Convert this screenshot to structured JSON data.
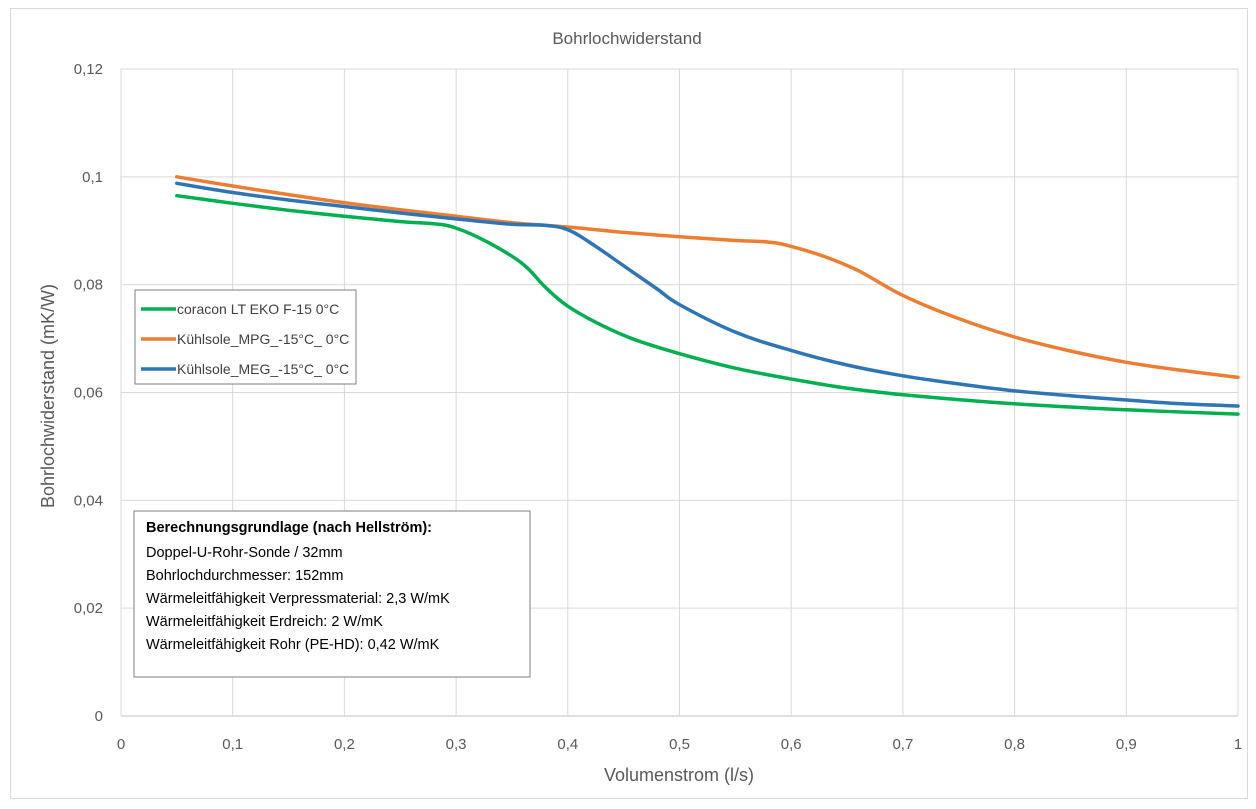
{
  "chart_data": {
    "type": "line",
    "title": "Bohrlochwiderstand",
    "xlabel": "Volumenstrom (l/s)",
    "ylabel": "Bohrlochwiderstand (mK/W)",
    "xlim": [
      0,
      1
    ],
    "ylim": [
      0,
      0.12
    ],
    "x_ticks": [
      "0",
      "0,1",
      "0,2",
      "0,3",
      "0,4",
      "0,5",
      "0,6",
      "0,7",
      "0,8",
      "0,9",
      "1"
    ],
    "y_ticks": [
      "0",
      "0,02",
      "0,04",
      "0,06",
      "0,08",
      "0,1",
      "0,12"
    ],
    "grid": "vertical and horizontal",
    "legend_position": "left",
    "series": [
      {
        "name": "coracon LT EKO F-15 0°C",
        "color": "#00b050",
        "points": [
          [
            0.05,
            0.0965
          ],
          [
            0.1,
            0.0951
          ],
          [
            0.15,
            0.0938
          ],
          [
            0.2,
            0.0927
          ],
          [
            0.25,
            0.0917
          ],
          [
            0.28,
            0.0913
          ],
          [
            0.3,
            0.0905
          ],
          [
            0.33,
            0.0877
          ],
          [
            0.36,
            0.0838
          ],
          [
            0.38,
            0.0795
          ],
          [
            0.4,
            0.076
          ],
          [
            0.43,
            0.0725
          ],
          [
            0.46,
            0.0698
          ],
          [
            0.5,
            0.0672
          ],
          [
            0.55,
            0.0645
          ],
          [
            0.6,
            0.0625
          ],
          [
            0.65,
            0.0608
          ],
          [
            0.7,
            0.0596
          ],
          [
            0.8,
            0.0579
          ],
          [
            0.9,
            0.0568
          ],
          [
            1.0,
            0.056
          ]
        ]
      },
      {
        "name": "Kühlsole_MPG_-15°C_ 0°C",
        "color": "#ed7d31",
        "points": [
          [
            0.05,
            0.1
          ],
          [
            0.1,
            0.0983
          ],
          [
            0.15,
            0.0967
          ],
          [
            0.2,
            0.0952
          ],
          [
            0.25,
            0.0939
          ],
          [
            0.3,
            0.0927
          ],
          [
            0.35,
            0.0915
          ],
          [
            0.4,
            0.0907
          ],
          [
            0.45,
            0.0897
          ],
          [
            0.5,
            0.0889
          ],
          [
            0.55,
            0.0882
          ],
          [
            0.58,
            0.0879
          ],
          [
            0.6,
            0.0871
          ],
          [
            0.63,
            0.0852
          ],
          [
            0.66,
            0.0826
          ],
          [
            0.7,
            0.078
          ],
          [
            0.75,
            0.0737
          ],
          [
            0.8,
            0.0703
          ],
          [
            0.85,
            0.0677
          ],
          [
            0.9,
            0.0656
          ],
          [
            0.95,
            0.0641
          ],
          [
            1.0,
            0.0628
          ]
        ]
      },
      {
        "name": "Kühlsole_MEG_-15°C_ 0°C",
        "color": "#2e75b6",
        "points": [
          [
            0.05,
            0.0988
          ],
          [
            0.1,
            0.0971
          ],
          [
            0.15,
            0.0957
          ],
          [
            0.2,
            0.0945
          ],
          [
            0.25,
            0.0933
          ],
          [
            0.3,
            0.0922
          ],
          [
            0.35,
            0.0912
          ],
          [
            0.38,
            0.091
          ],
          [
            0.4,
            0.0902
          ],
          [
            0.42,
            0.0878
          ],
          [
            0.45,
            0.0835
          ],
          [
            0.48,
            0.0792
          ],
          [
            0.5,
            0.0763
          ],
          [
            0.55,
            0.0712
          ],
          [
            0.6,
            0.0678
          ],
          [
            0.65,
            0.0651
          ],
          [
            0.7,
            0.0631
          ],
          [
            0.75,
            0.0616
          ],
          [
            0.8,
            0.0603
          ],
          [
            0.85,
            0.0594
          ],
          [
            0.9,
            0.0586
          ],
          [
            0.95,
            0.0579
          ],
          [
            1.0,
            0.0575
          ]
        ]
      }
    ]
  },
  "note": {
    "heading": "Berechnungsgrundlage (nach Hellström):",
    "lines": [
      "Doppel-U-Rohr-Sonde / 32mm",
      "Bohrlochdurchmesser: 152mm",
      "Wärmeleitfähigkeit  Verpressmaterial: 2,3 W/mK",
      "Wärmeleitfähigkeit  Erdreich: 2 W/mK",
      "Wärmeleitfähigkeit  Rohr (PE-HD): 0,42 W/mK"
    ]
  }
}
